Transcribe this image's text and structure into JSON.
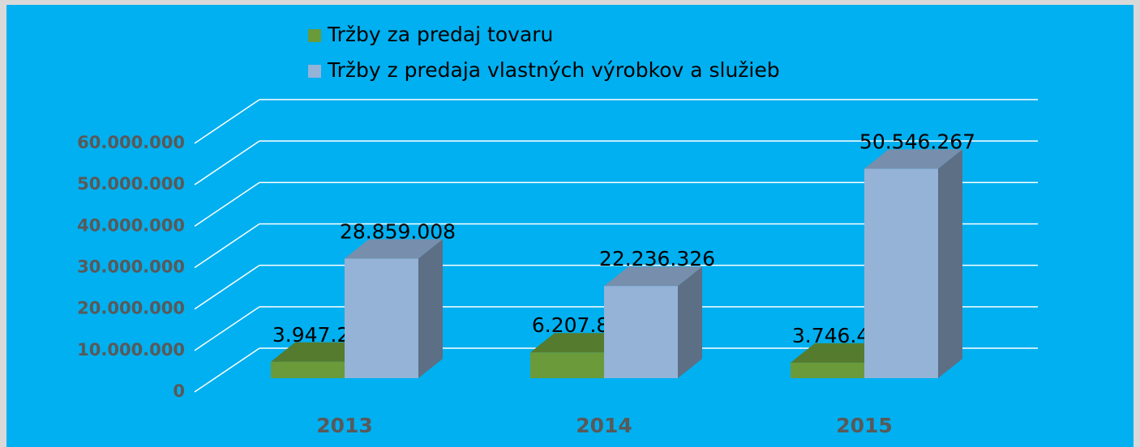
{
  "chart_data": {
    "type": "bar3d",
    "categories": [
      "2013",
      "2014",
      "2015"
    ],
    "series": [
      {
        "name": "Tržby za predaj tovaru",
        "color": "#6a9a3a",
        "values": [
          3947234,
          6207835,
          3746432
        ],
        "value_labels": [
          "3.947.234",
          "6.207.835",
          "3.746.432"
        ]
      },
      {
        "name": "Tržby z predaja vlastných výrobkov a služieb",
        "color": "#95b3d7",
        "values": [
          28859008,
          22236326,
          50546267
        ],
        "value_labels": [
          "28.859.008",
          "22.236.326",
          "50.546.267"
        ]
      }
    ],
    "ylim": [
      0,
      60000000
    ],
    "yticks": [
      0,
      {
        "value": 10000000,
        "label": "10.000.000"
      },
      {
        "value": 20000000,
        "label": "20.000.000"
      },
      {
        "value": 30000000,
        "label": "30.000.000"
      },
      {
        "value": 40000000,
        "label": "40.000.000"
      },
      {
        "value": 50000000,
        "label": "50.000.000"
      },
      {
        "value": 60000000,
        "label": "60.000.000"
      }
    ],
    "grid": true
  }
}
